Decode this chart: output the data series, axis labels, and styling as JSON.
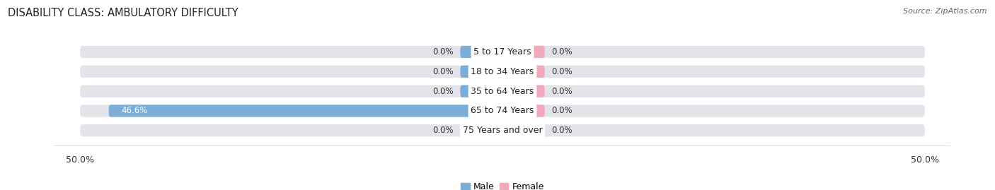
{
  "title": "DISABILITY CLASS: AMBULATORY DIFFICULTY",
  "source": "Source: ZipAtlas.com",
  "categories": [
    "5 to 17 Years",
    "18 to 34 Years",
    "35 to 64 Years",
    "65 to 74 Years",
    "75 Years and over"
  ],
  "male_values": [
    0.0,
    0.0,
    0.0,
    46.6,
    0.0
  ],
  "female_values": [
    0.0,
    0.0,
    0.0,
    0.0,
    0.0
  ],
  "male_color": "#7badd6",
  "female_color": "#f4a8bc",
  "bar_bg_color": "#e2e4ea",
  "axis_limit": 50.0,
  "male_label": "Male",
  "female_label": "Female",
  "title_fontsize": 10.5,
  "source_fontsize": 8,
  "label_fontsize": 8.5,
  "category_fontsize": 9,
  "tick_fontsize": 9,
  "background_color": "#ffffff",
  "bar_height": 0.62,
  "min_bar_width": 5.0,
  "value_label_color": "#333333",
  "male_value_text_color": "#ffffff"
}
